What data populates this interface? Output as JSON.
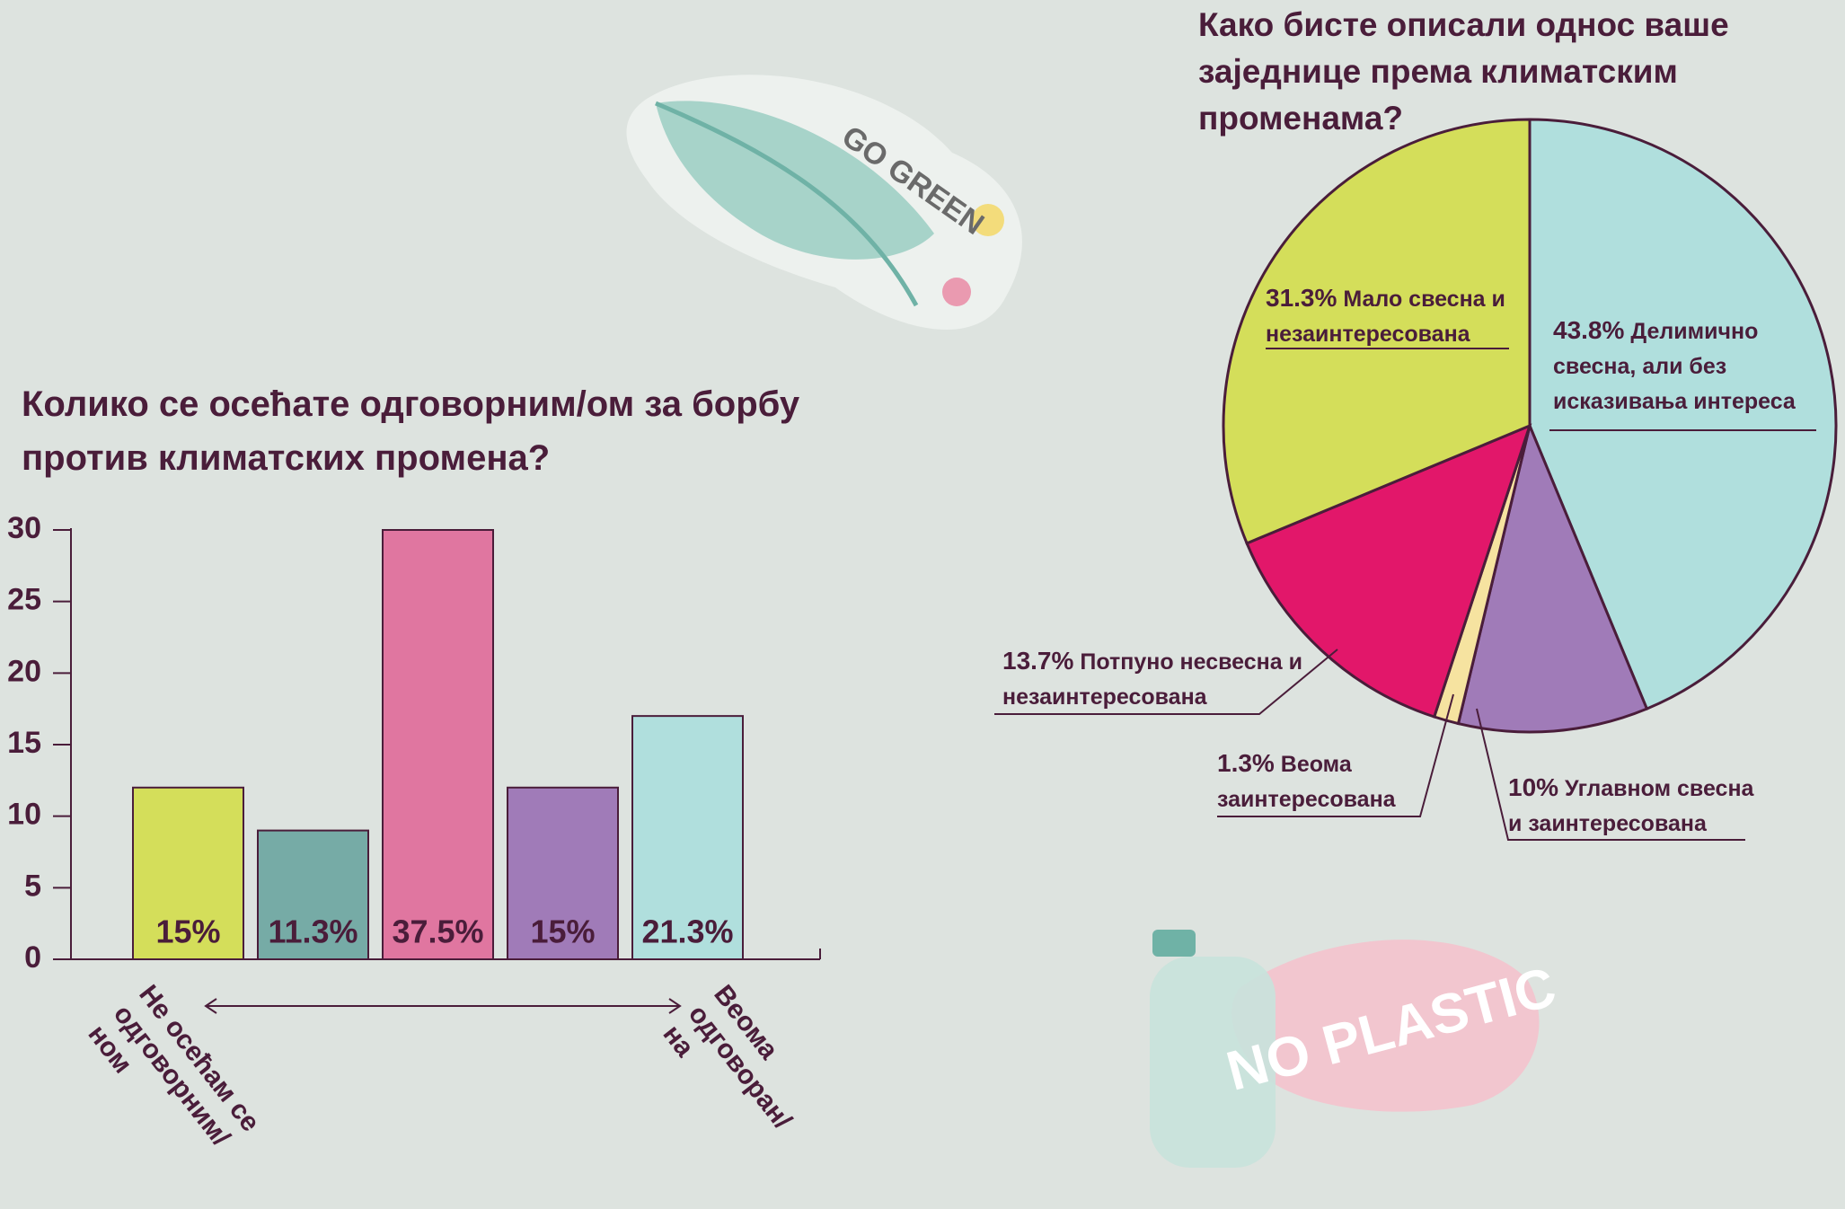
{
  "chart_data": [
    {
      "type": "bar",
      "title": "Колико се осећате одговорним/ом за борбу против климатских промена?",
      "values": [
        12,
        9,
        30,
        12,
        17
      ],
      "value_labels": [
        "15%",
        "11.3%",
        "37.5%",
        "15%",
        "21.3%"
      ],
      "colors": [
        "#d4de5a",
        "#76aba6",
        "#e076a0",
        "#a07bb8",
        "#b0dfdd"
      ],
      "ylim": [
        0,
        30
      ],
      "yticks": [
        0,
        5,
        10,
        15,
        20,
        25,
        30
      ],
      "x_start_label": "Не осећам се одговорним/ном",
      "x_end_label": "Веома одговоран/на"
    },
    {
      "type": "pie",
      "title": "Како бисте описали однос ваше заједнице према климатским променама?",
      "categories": [
        "Делимично свесна, али без исказивања интереса",
        "Углавном свесна и заинтересована",
        "Веома заинтересована",
        "Потпуно несвесна и незаинтересована",
        "Мало свесна и незаинтересована"
      ],
      "values": [
        43.8,
        10,
        1.3,
        13.7,
        31.3
      ],
      "value_labels": [
        "43.8%",
        "10%",
        "1.3%",
        "13.7%",
        "31.3%"
      ],
      "colors": [
        "#b0dfdd",
        "#a07bb8",
        "#f6e3a0",
        "#e2176a",
        "#d4de5a"
      ]
    }
  ],
  "decorations": {
    "sticker_1": "GO GREEN",
    "sticker_2": "NO PLASTIC"
  }
}
